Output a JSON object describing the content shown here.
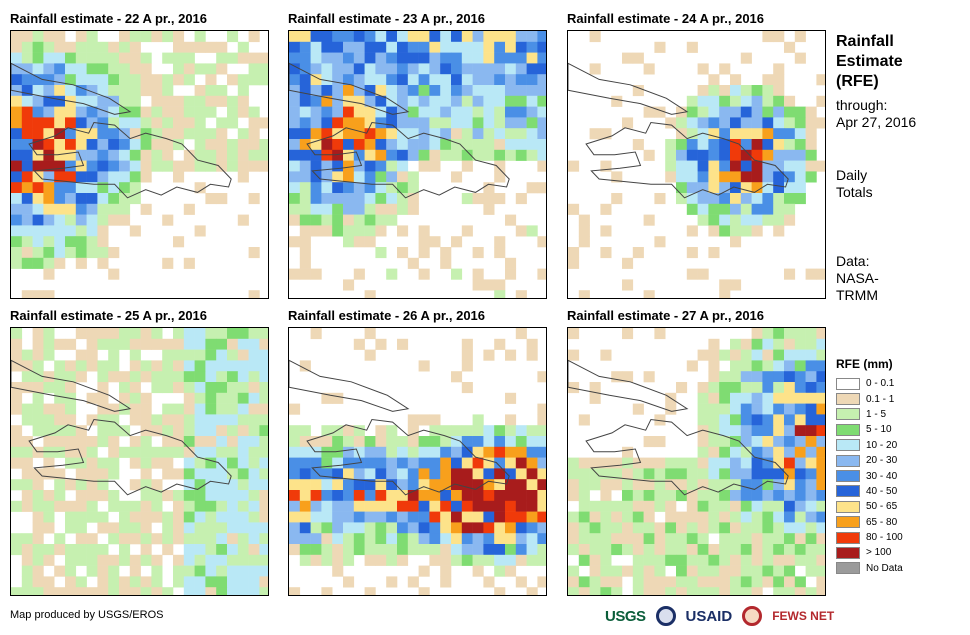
{
  "panels": [
    {
      "title": "Rainfall estimate - 22 A pr., 2016",
      "seed": 22,
      "pattern": "west"
    },
    {
      "title": "Rainfall estimate - 23 A pr., 2016",
      "seed": 23,
      "pattern": "north"
    },
    {
      "title": "Rainfall estimate - 24 A pr., 2016",
      "seed": 24,
      "pattern": "center"
    },
    {
      "title": "Rainfall estimate - 25 A pr., 2016",
      "seed": 25,
      "pattern": "sparse"
    },
    {
      "title": "Rainfall estimate - 26 A pr., 2016",
      "seed": 26,
      "pattern": "south"
    },
    {
      "title": "Rainfall estimate - 27 A pr., 2016",
      "seed": 27,
      "pattern": "east"
    }
  ],
  "sidebar": {
    "title_line1": "Rainfall",
    "title_line2": "Estimate",
    "title_line3": "(RFE)",
    "through_label": "through:",
    "through_date": "Apr 27, 2016",
    "daily_line1": "Daily",
    "daily_line2": "Totals",
    "data_line1": "Data:",
    "data_line2": "NASA-",
    "data_line3": "TRMM"
  },
  "legend": {
    "title": "RFE (mm)",
    "items": [
      {
        "label": "0 - 0.1",
        "color": "#ffffff"
      },
      {
        "label": "0.1 - 1",
        "color": "#eed8b6"
      },
      {
        "label": "1 - 5",
        "color": "#c6f0b0"
      },
      {
        "label": "5 - 10",
        "color": "#7fdc72"
      },
      {
        "label": "10 - 20",
        "color": "#b9e8f6"
      },
      {
        "label": "20 - 30",
        "color": "#8ab8f0"
      },
      {
        "label": "30 - 40",
        "color": "#4a8fe6"
      },
      {
        "label": "40 - 50",
        "color": "#2664d9"
      },
      {
        "label": "50 - 65",
        "color": "#fde38a"
      },
      {
        "label": "65 - 80",
        "color": "#f8a01c"
      },
      {
        "label": "80 - 100",
        "color": "#f03a0a"
      },
      {
        "label": "> 100",
        "color": "#a81c1c"
      },
      {
        "label": "No Data",
        "color": "#9b9b9b"
      }
    ]
  },
  "footer": {
    "credit": "Map produced by USGS/EROS",
    "logo_usgs": "USGS",
    "logo_usaid": "USAID",
    "logo_fews": "FEWS NET"
  }
}
